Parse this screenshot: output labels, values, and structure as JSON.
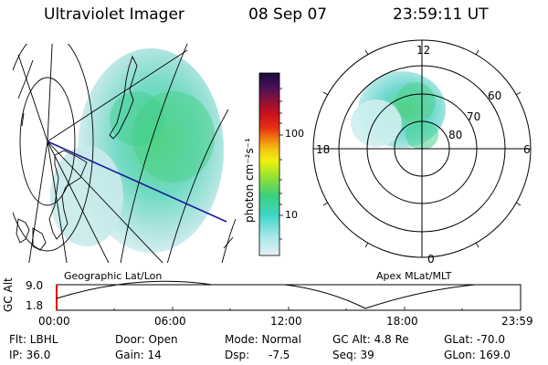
{
  "header": {
    "title": "Ultraviolet Imager",
    "date": "08 Sep 07",
    "time": "23:59:11 UT"
  },
  "colorbar": {
    "label": "photon cm⁻²s⁻¹",
    "ticks": [
      "100",
      "10"
    ],
    "tick_values": [
      100,
      10
    ]
  },
  "panels": {
    "left_caption": "Geographic Lat/Lon",
    "right_caption": "Apex MLat/MLT"
  },
  "polar_plot": {
    "mlt_labels": [
      "12",
      "18",
      "6",
      "0"
    ],
    "lat_labels": [
      "60",
      "70",
      "80"
    ],
    "lat_values": [
      60,
      70,
      80
    ]
  },
  "altitude_plot": {
    "ylabel": "GC Alt",
    "yticks": [
      "9.0",
      "1.8"
    ],
    "ytick_values": [
      9.0,
      1.8
    ],
    "xticks": [
      "00:00",
      "06:00",
      "12:00",
      "18:00",
      "23:59"
    ],
    "current_position": 0.0
  },
  "footer": {
    "filter": "Flt: LBHL",
    "ip": "IP: 36.0",
    "door": "Door: Open",
    "gain": "Gain: 14",
    "mode": "Mode: Normal",
    "dsp_label": "Dsp:",
    "dsp_value": "-7.5",
    "gc_alt": "GC Alt: 4.8 Re",
    "seq": "Seq: 39",
    "glat": "GLat: -70.0",
    "glon": "GLon: 169.0"
  },
  "colors": {
    "aurora_green": "#44d27a",
    "aurora_cyan": "#5ed6da",
    "aurora_light": "#bfe6e6",
    "track_blue": "#1a1a9a",
    "marker_red": "#e00000"
  }
}
